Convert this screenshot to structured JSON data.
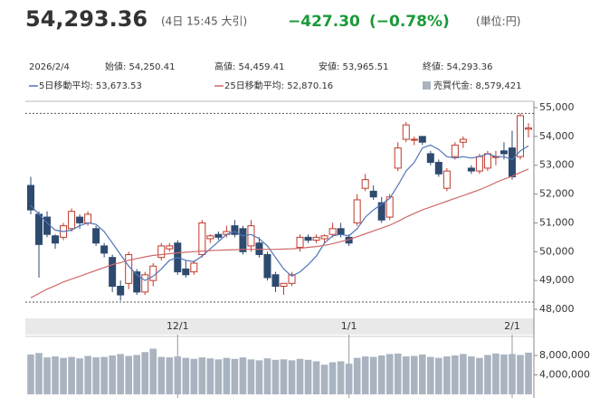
{
  "header": {
    "price": "54,293.36",
    "time": "(4日 15:45 大引)",
    "change": "−427.30",
    "change_pct": "(−0.78%)",
    "unit": "(単位:円)"
  },
  "info": {
    "date": "2026/2/4",
    "open": "始値: 54,250.41",
    "high": "高値: 54,459.41",
    "low": "安値: 53,965.51",
    "close": "終値: 54,293.36"
  },
  "chart_data": {
    "type": "candlestick",
    "categories": [
      null,
      null,
      null,
      null,
      null,
      null,
      null,
      null,
      null,
      null,
      null,
      null,
      null,
      null,
      null,
      null,
      null,
      null,
      "12/1",
      null,
      null,
      null,
      null,
      null,
      null,
      null,
      null,
      null,
      null,
      null,
      null,
      null,
      null,
      null,
      null,
      null,
      null,
      null,
      null,
      "1/1",
      null,
      null,
      null,
      null,
      null,
      null,
      null,
      null,
      null,
      null,
      null,
      null,
      null,
      null,
      null,
      null,
      null,
      null,
      null,
      "2/1",
      null,
      null
    ],
    "open": [
      52300,
      51300,
      51200,
      50550,
      50500,
      50800,
      51200,
      51000,
      50800,
      50200,
      49800,
      48800,
      48900,
      49300,
      48600,
      49000,
      49800,
      50100,
      50300,
      49400,
      49300,
      49900,
      50450,
      50600,
      50600,
      50900,
      50800,
      50200,
      50300,
      49900,
      49200,
      48800,
      48900,
      50150,
      50500,
      50400,
      50450,
      50600,
      50800,
      50500,
      51000,
      52200,
      52100,
      51700,
      51200,
      52900,
      53900,
      53900,
      54000,
      53400,
      53100,
      52200,
      53300,
      53800,
      52900,
      52800,
      52900,
      53300,
      53500,
      53600,
      53300,
      54250.41
    ],
    "high": [
      52600,
      51400,
      51400,
      50600,
      51000,
      51500,
      51300,
      51400,
      50900,
      50300,
      49900,
      49000,
      50000,
      49400,
      49300,
      49600,
      50300,
      50300,
      50400,
      49700,
      49700,
      51100,
      50600,
      50700,
      50900,
      51100,
      50900,
      51100,
      50500,
      50000,
      49300,
      48900,
      49300,
      50600,
      50600,
      50600,
      50600,
      51000,
      51000,
      50600,
      52000,
      52700,
      52300,
      51900,
      52000,
      53800,
      54500,
      54000,
      54000,
      53500,
      53200,
      52900,
      53800,
      54000,
      53000,
      53400,
      53500,
      53500,
      53800,
      54200,
      54800,
      54459.41
    ],
    "low": [
      51300,
      49100,
      50500,
      50100,
      50400,
      50700,
      50800,
      50900,
      50200,
      49800,
      48600,
      48300,
      48700,
      48500,
      48500,
      48800,
      49700,
      50000,
      49200,
      49100,
      49200,
      49800,
      50300,
      50400,
      50500,
      50500,
      49900,
      50000,
      49800,
      49000,
      48600,
      48500,
      48800,
      50000,
      50300,
      50300,
      50300,
      50500,
      50500,
      50200,
      50900,
      52100,
      51800,
      51000,
      51100,
      52800,
      53800,
      53700,
      53700,
      53000,
      52600,
      52100,
      53200,
      53600,
      52700,
      52700,
      52800,
      53000,
      53200,
      52500,
      53200,
      53965.51
    ],
    "close": [
      51450,
      50250,
      50600,
      50300,
      50900,
      51400,
      51000,
      51300,
      50300,
      49950,
      48800,
      48500,
      49900,
      48600,
      49200,
      49500,
      50200,
      50200,
      49300,
      49200,
      49600,
      51000,
      50550,
      50500,
      50700,
      50600,
      50000,
      50900,
      49900,
      49100,
      48800,
      48900,
      49200,
      50500,
      50400,
      50500,
      50550,
      50800,
      50600,
      50300,
      51800,
      52500,
      51900,
      51100,
      51900,
      53600,
      54400,
      53900,
      53800,
      53100,
      52700,
      52800,
      53700,
      53900,
      52800,
      53300,
      53400,
      53300,
      53400,
      52600,
      54720.66,
      54293.36
    ],
    "up_color": "#c0392b",
    "down_color": "#2e4a6f",
    "series": [
      {
        "name": "5日移動平均: 53,673.53",
        "color": "#4f74b8",
        "values": [
          51600,
          51300,
          51000,
          50750,
          50700,
          50750,
          50900,
          51000,
          50950,
          50700,
          50300,
          49900,
          49500,
          49200,
          49000,
          49150,
          49400,
          49700,
          49800,
          49700,
          49650,
          49850,
          50100,
          50350,
          50600,
          50700,
          50550,
          50600,
          50450,
          50200,
          49800,
          49400,
          49150,
          49300,
          49550,
          49850,
          50300,
          50550,
          50600,
          50550,
          50800,
          51200,
          51450,
          51650,
          51850,
          52300,
          52800,
          53100,
          53600,
          53700,
          53550,
          53300,
          53250,
          53300,
          53250,
          53300,
          53400,
          53300,
          53300,
          53200,
          53500,
          53673.53
        ]
      },
      {
        "name": "25日移動平均: 52,870.16",
        "color": "#d06a6a",
        "values": [
          48400,
          48550,
          48700,
          48820,
          48950,
          49050,
          49150,
          49250,
          49350,
          49450,
          49550,
          49620,
          49700,
          49760,
          49820,
          49870,
          49900,
          49930,
          49960,
          49980,
          50000,
          50020,
          50040,
          50050,
          50060,
          50070,
          50080,
          50080,
          50080,
          50080,
          50080,
          50090,
          50100,
          50120,
          50150,
          50180,
          50220,
          50280,
          50350,
          50420,
          50520,
          50620,
          50720,
          50820,
          50920,
          51050,
          51200,
          51330,
          51450,
          51550,
          51650,
          51750,
          51850,
          51950,
          52050,
          52150,
          52270,
          52400,
          52520,
          52620,
          52750,
          52870.16
        ]
      }
    ],
    "hlines": [
      54800,
      48250
    ],
    "ylim": [
      48000,
      55000
    ],
    "yticks": [
      {
        "value": 48000,
        "label": "48,000"
      },
      {
        "value": 49000,
        "label": "49,000"
      },
      {
        "value": 50000,
        "label": "50,000"
      },
      {
        "value": 51000,
        "label": "51,000"
      },
      {
        "value": 52000,
        "label": "52,000"
      },
      {
        "value": 53000,
        "label": "53,000"
      },
      {
        "value": 54000,
        "label": "54,000"
      },
      {
        "value": 55000,
        "label": "55,000"
      }
    ],
    "volume": {
      "name": "売買代金: 8,579,421",
      "color": "#a9b4c0",
      "values": [
        8200000,
        8500000,
        7600000,
        7800000,
        7500000,
        7700000,
        7400000,
        7900000,
        7600000,
        7700000,
        8000000,
        8300000,
        7900000,
        8100000,
        8700000,
        9400000,
        7700000,
        7600000,
        7800000,
        7500000,
        7300000,
        7600000,
        7400000,
        7200000,
        7500000,
        7300000,
        7600000,
        7200000,
        7000000,
        7400000,
        7100000,
        7200000,
        7000000,
        7300000,
        7100000,
        6800000,
        6100000,
        6600000,
        6800000,
        6300000,
        7500000,
        7800000,
        7700000,
        8000000,
        8300000,
        8400000,
        7800000,
        7900000,
        8200000,
        7700000,
        7500000,
        7800000,
        8000000,
        8300000,
        7800000,
        7500000,
        8100000,
        8400000,
        8200000,
        8300000,
        8100000,
        8579421
      ]
    },
    "y2lim": [
      0,
      11350000
    ],
    "y2ticks": [
      {
        "value": 4000000,
        "label": "4,000,000"
      },
      {
        "value": 8000000,
        "label": "8,000,000"
      }
    ]
  }
}
